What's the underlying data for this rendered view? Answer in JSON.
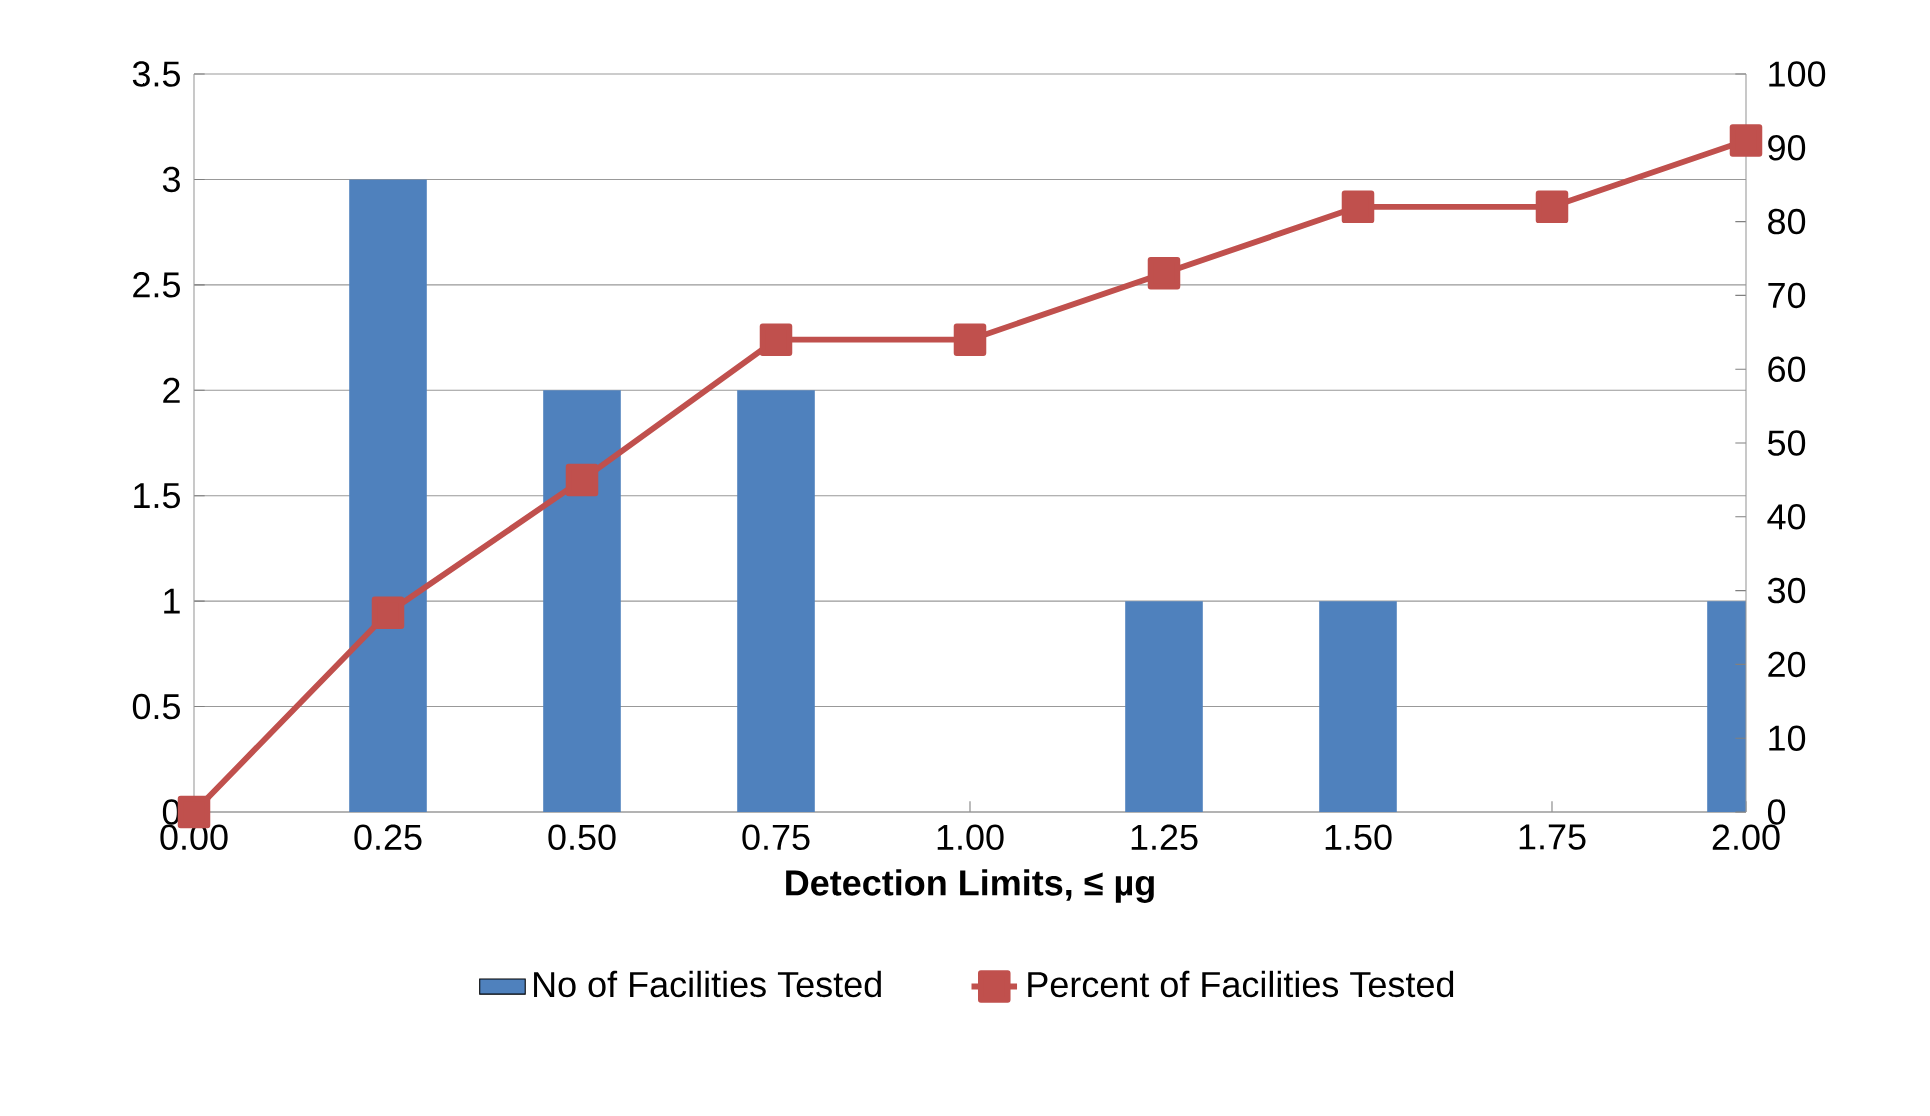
{
  "chart_data": {
    "type": "bar",
    "xlabel": "**Detection Limits, ≤ µg**",
    "categories": [
      "0.00",
      "0.25",
      "0.50",
      "0.75",
      "1.00",
      "1.25",
      "1.50",
      "1.75",
      "2.00"
    ],
    "series": [
      {
        "name": "No of Facilities Tested",
        "color": "#4f81bd",
        "values": [
          0,
          3,
          2,
          2,
          0,
          1,
          1,
          0,
          1
        ]
      },
      {
        "name": "Percent of Facilities Tested",
        "type": "line",
        "axis": "y2",
        "marker": "square",
        "color": "#c0504d",
        "values": [
          0,
          27,
          45,
          64,
          64,
          73,
          82,
          82,
          91
        ]
      }
    ],
    "ylim": [
      0,
      3.5
    ],
    "yticks": [
      0,
      0.5,
      1,
      1.5,
      2,
      2.5,
      3,
      3.5
    ],
    "y2lim": [
      0,
      100
    ],
    "y2ticks": [
      0,
      10,
      20,
      30,
      40,
      50,
      60,
      70,
      80,
      90,
      100
    ],
    "grid": "y",
    "legend": "bottom"
  }
}
